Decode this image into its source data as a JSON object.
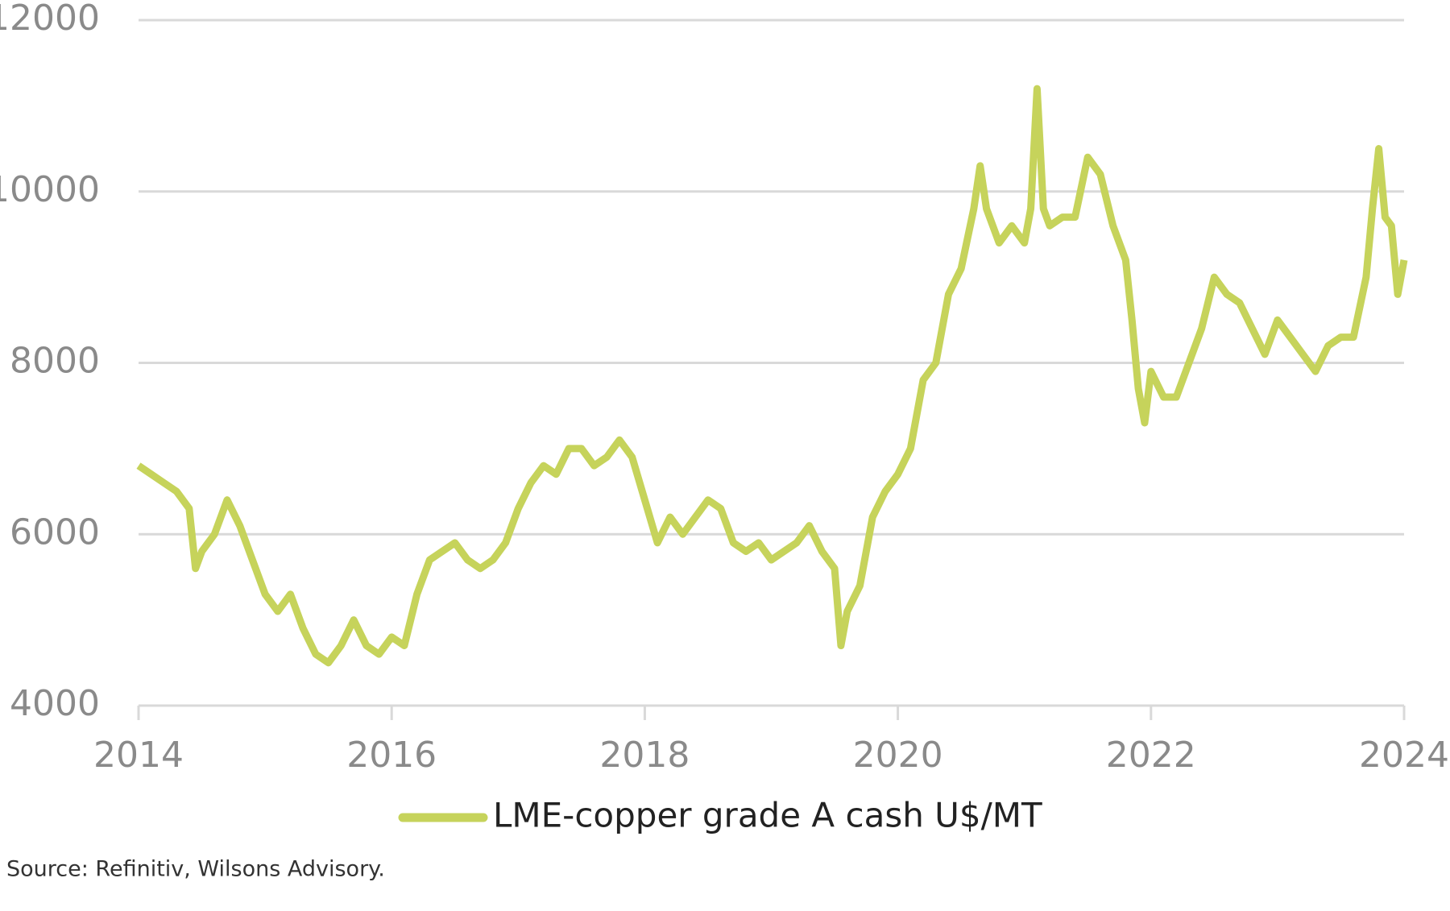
{
  "chart_data": {
    "type": "line",
    "x": [
      2014.0,
      2014.1,
      2014.2,
      2014.3,
      2014.4,
      2014.45,
      2014.5,
      2014.6,
      2014.7,
      2014.8,
      2014.9,
      2015.0,
      2015.1,
      2015.2,
      2015.3,
      2015.4,
      2015.5,
      2015.6,
      2015.7,
      2015.8,
      2015.9,
      2016.0,
      2016.1,
      2016.2,
      2016.3,
      2016.4,
      2016.5,
      2016.6,
      2016.7,
      2016.8,
      2016.9,
      2017.0,
      2017.1,
      2017.2,
      2017.3,
      2017.4,
      2017.5,
      2017.6,
      2017.7,
      2017.8,
      2017.9,
      2018.0,
      2018.1,
      2018.2,
      2018.3,
      2018.4,
      2018.5,
      2018.6,
      2018.7,
      2018.8,
      2018.9,
      2019.0,
      2019.1,
      2019.2,
      2019.3,
      2019.4,
      2019.5,
      2019.55,
      2019.6,
      2019.7,
      2019.8,
      2019.9,
      2020.0,
      2020.1,
      2020.2,
      2020.3,
      2020.4,
      2020.5,
      2020.6,
      2020.65,
      2020.7,
      2020.8,
      2020.9,
      2021.0,
      2021.05,
      2021.1,
      2021.15,
      2021.2,
      2021.3,
      2021.4,
      2021.5,
      2021.6,
      2021.7,
      2021.8,
      2021.85,
      2021.9,
      2021.95,
      2022.0,
      2022.1,
      2022.2,
      2022.3,
      2022.4,
      2022.5,
      2022.6,
      2022.7,
      2022.8,
      2022.9,
      2023.0,
      2023.1,
      2023.2,
      2023.3,
      2023.4,
      2023.5,
      2023.6,
      2023.7,
      2023.75,
      2023.8,
      2023.85,
      2023.9,
      2023.95,
      2024.0
    ],
    "series": [
      {
        "name": "LME-copper grade A cash U$/MT",
        "color": "#c6d35b",
        "values": [
          6800,
          6700,
          6600,
          6500,
          6300,
          5600,
          5800,
          6000,
          6400,
          6100,
          5700,
          5300,
          5100,
          5300,
          4900,
          4600,
          4500,
          4700,
          5000,
          4700,
          4600,
          4800,
          4700,
          5300,
          5700,
          5800,
          5900,
          5700,
          5600,
          5700,
          5900,
          6300,
          6600,
          6800,
          6700,
          7000,
          7000,
          6800,
          6900,
          7100,
          6900,
          6400,
          5900,
          6200,
          6000,
          6200,
          6400,
          6300,
          5900,
          5800,
          5900,
          5700,
          5800,
          5900,
          6100,
          5800,
          5600,
          4700,
          5100,
          5400,
          6200,
          6500,
          6700,
          7000,
          7800,
          8000,
          8800,
          9100,
          9800,
          10300,
          9800,
          9400,
          9600,
          9400,
          9800,
          11200,
          9800,
          9600,
          9700,
          9700,
          10400,
          10200,
          9600,
          9200,
          8500,
          7700,
          7300,
          7900,
          7600,
          7600,
          8000,
          8400,
          9000,
          8800,
          8700,
          8400,
          8100,
          8500,
          8300,
          8100,
          7900,
          8200,
          8300,
          8300,
          9000,
          9800,
          10500,
          9700,
          9600,
          8800,
          9200
        ]
      }
    ],
    "xlim": [
      2014,
      2024
    ],
    "xticks": [
      2014,
      2016,
      2018,
      2020,
      2022,
      2024
    ],
    "ylim": [
      4000,
      12000
    ],
    "yticks": [
      4000,
      6000,
      8000,
      10000,
      12000
    ],
    "grid": true,
    "legend": "bottom",
    "source": "Source: Refinitiv, Wilsons Advisory."
  }
}
